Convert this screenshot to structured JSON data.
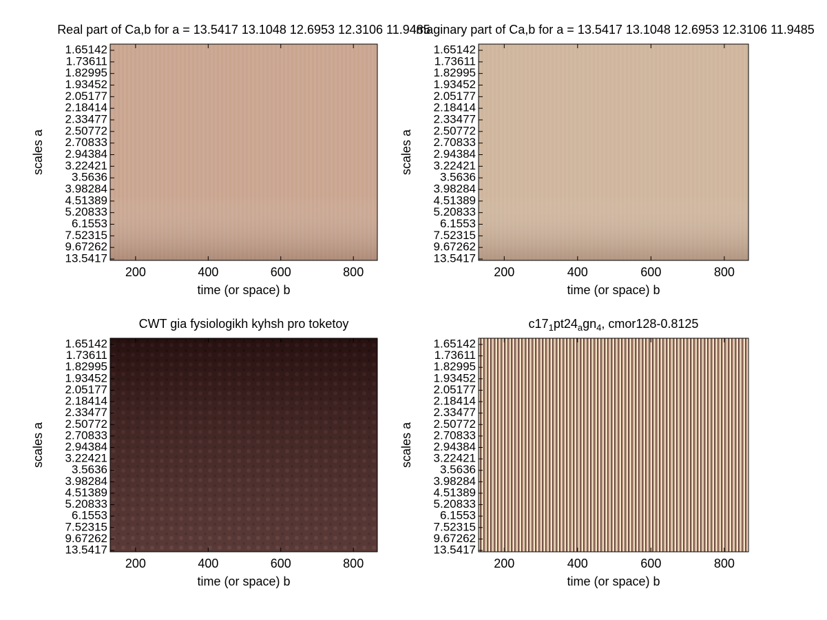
{
  "chart_data": [
    {
      "type": "heatmap",
      "title": "Real part of Ca,b for a =  13.5417 13.1048 12.6953 12.3106 11.9485",
      "xlabel": "time (or space) b",
      "ylabel": "scales a",
      "color": "#c9a58f",
      "xlim": [
        130,
        866
      ],
      "xticks": [
        200,
        400,
        600,
        800
      ],
      "yticklabels": [
        1.65142,
        1.73611,
        1.82995,
        1.93452,
        2.05177,
        2.18414,
        2.33477,
        2.50772,
        2.70833,
        2.94384,
        3.22421,
        3.5636,
        3.98284,
        4.51389,
        5.20833,
        6.1553,
        7.52315,
        9.67262,
        13.5417
      ]
    },
    {
      "type": "heatmap",
      "title": "Imaginary part of Ca,b for a =  13.5417 13.1048 12.6953 12.3106 11.9485",
      "xlabel": "time (or space) b",
      "ylabel": "scales a",
      "color": "#cfb59d",
      "xlim": [
        130,
        866
      ],
      "xticks": [
        200,
        400,
        600,
        800
      ],
      "yticklabels": [
        1.65142,
        1.73611,
        1.82995,
        1.93452,
        2.05177,
        2.18414,
        2.33477,
        2.50772,
        2.70833,
        2.94384,
        3.22421,
        3.5636,
        3.98284,
        4.51389,
        5.20833,
        6.1553,
        7.52315,
        9.67262,
        13.5417
      ]
    },
    {
      "type": "heatmap",
      "title": "CWT gia fysiologikh kyhsh pro toketoy",
      "xlabel": "time (or space) b",
      "ylabel": "scales a",
      "color": "#3a1d1c",
      "xlim": [
        130,
        866
      ],
      "xticks": [
        200,
        400,
        600,
        800
      ],
      "yticklabels": [
        1.65142,
        1.73611,
        1.82995,
        1.93452,
        2.05177,
        2.18414,
        2.33477,
        2.50772,
        2.70833,
        2.94384,
        3.22421,
        3.5636,
        3.98284,
        4.51389,
        5.20833,
        6.1553,
        7.52315,
        9.67262,
        13.5417
      ]
    },
    {
      "type": "heatmap",
      "title": [
        {
          "text": "c17"
        },
        {
          "text": "1",
          "sub": true
        },
        {
          "text": "pt24"
        },
        {
          "text": "a",
          "sub": true
        },
        {
          "text": "gn"
        },
        {
          "text": "4",
          "sub": true
        },
        {
          "text": ", cmor128-0.8125"
        }
      ],
      "xlabel": "time (or space) b",
      "ylabel": "scales a",
      "color": "#b08a78",
      "xlim": [
        130,
        866
      ],
      "xticks": [
        200,
        400,
        600,
        800
      ],
      "yticklabels": [
        1.65142,
        1.73611,
        1.82995,
        1.93452,
        2.05177,
        2.18414,
        2.33477,
        2.50772,
        2.70833,
        2.94384,
        3.22421,
        3.5636,
        3.98284,
        4.51389,
        5.20833,
        6.1553,
        7.52315,
        9.67262,
        13.5417
      ]
    }
  ]
}
